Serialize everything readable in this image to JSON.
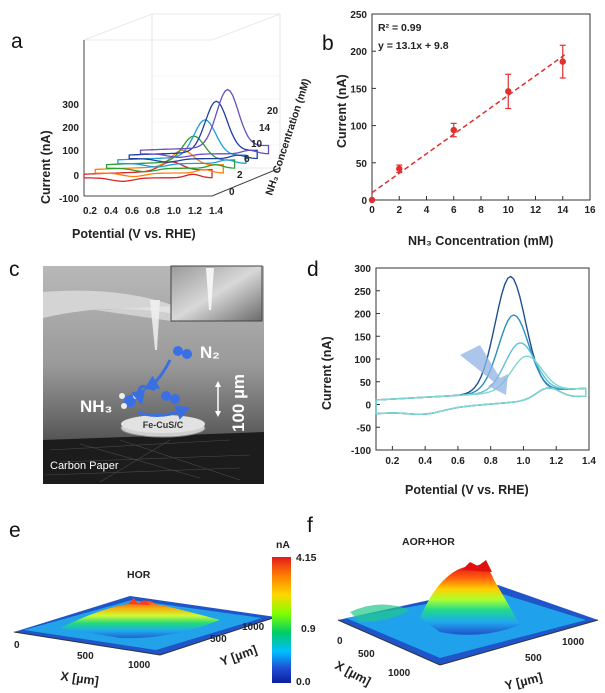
{
  "panels": {
    "a": {
      "label": "a",
      "xlabel": "Potential (V vs. RHE)",
      "ylabel": "Current (nA)",
      "zlabel": "NH₃ Concentration (mM)",
      "x_ticks": [
        "0.2",
        "0.4",
        "0.6",
        "0.8",
        "1.0",
        "1.2",
        "1.4"
      ],
      "y_ticks": [
        "-100",
        "0",
        "100",
        "200",
        "300"
      ],
      "z_ticks": [
        "0",
        "2",
        "6",
        "10",
        "14",
        "20"
      ],
      "series_colors": [
        "#d62728",
        "#ff7f0e",
        "#2ca02c",
        "#1f9fd6",
        "#1f3f9f",
        "#6a4fc4"
      ]
    },
    "b": {
      "label": "b"
    },
    "c": {
      "label": "c",
      "n2": "N₂",
      "nh3": "NH₃",
      "catalyst": "Fe-CuS/C",
      "distance": "100 µm",
      "substrate": "Carbon Paper"
    },
    "d": {
      "label": "d"
    },
    "e": {
      "label": "e",
      "title": "HOR",
      "xlabel": "X [µm]",
      "ylabel": "Y [µm]",
      "x_ticks": [
        "0",
        "500",
        "1000"
      ],
      "y_ticks": [
        "500",
        "1000"
      ]
    },
    "colorbar": {
      "unit": "nA",
      "ticks": [
        "4.15",
        "0.9",
        "0.0"
      ],
      "colors": [
        "#e31a1c",
        "#ff7f00",
        "#ffd700",
        "#7fff00",
        "#00cc66",
        "#00bfff",
        "#1f4fd6",
        "#0a1f9c"
      ]
    },
    "f": {
      "label": "f",
      "title": "AOR+HOR",
      "xlabel": "X [µm]",
      "ylabel": "Y [µm]",
      "x_ticks": [
        "0",
        "500",
        "1000"
      ],
      "y_ticks": [
        "500",
        "1000"
      ]
    }
  },
  "chart_data": [
    {
      "type": "scatter",
      "panel": "b",
      "xlabel": "NH₃ Concentration (mM)",
      "ylabel": "Current (nA)",
      "xlim": [
        0,
        16
      ],
      "ylim": [
        0,
        250
      ],
      "x_ticks": [
        0,
        2,
        4,
        6,
        8,
        10,
        12,
        14,
        16
      ],
      "y_ticks": [
        0,
        50,
        100,
        150,
        200,
        250
      ],
      "x": [
        0,
        2,
        6,
        10,
        14
      ],
      "y": [
        0,
        42,
        94,
        146,
        186
      ],
      "error": [
        0,
        5,
        9,
        23,
        22
      ],
      "fit": {
        "slope": 13.1,
        "intercept": 9.8,
        "x_range": [
          0,
          14.2
        ]
      },
      "annotations": [
        "R² = 0.99",
        "y = 13.1x + 9.8"
      ],
      "color": "#e03030"
    },
    {
      "type": "line",
      "panel": "d",
      "xlabel": "Potential (V vs. RHE)",
      "ylabel": "Current (nA)",
      "xlim": [
        0.1,
        1.4
      ],
      "ylim": [
        -100,
        300
      ],
      "x_ticks": [
        0.2,
        0.4,
        0.6,
        0.8,
        1.0,
        1.2,
        1.4
      ],
      "y_ticks": [
        -100,
        -50,
        0,
        50,
        100,
        150,
        200,
        250,
        300
      ],
      "peaks": [
        {
          "peak_x": 0.92,
          "peak_y": 265,
          "color": "#1f4f8f"
        },
        {
          "peak_x": 0.94,
          "peak_y": 180,
          "color": "#2a8fbf"
        },
        {
          "peak_x": 0.98,
          "peak_y": 118,
          "color": "#5fc0d8"
        },
        {
          "peak_x": 1.02,
          "peak_y": 88,
          "color": "#7fd8d0"
        }
      ],
      "baseline_anodic": 10,
      "baseline_cathodic": -20
    }
  ]
}
